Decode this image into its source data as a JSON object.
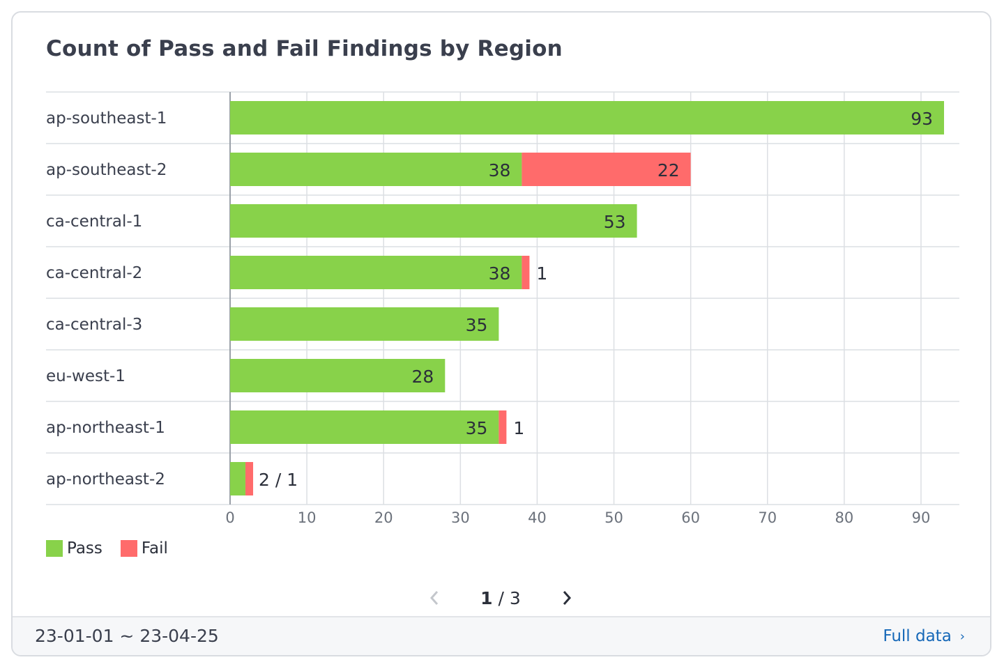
{
  "title": "Count of Pass and Fail Findings by Region",
  "chart_data": {
    "type": "bar",
    "orientation": "horizontal",
    "stacked": true,
    "categories": [
      "ap-southeast-1",
      "ap-southeast-2",
      "ca-central-1",
      "ca-central-2",
      "ca-central-3",
      "eu-west-1",
      "ap-northeast-1",
      "ap-northeast-2"
    ],
    "series": [
      {
        "name": "Pass",
        "color": "#88d24a",
        "values": [
          93,
          38,
          53,
          38,
          35,
          28,
          35,
          2
        ]
      },
      {
        "name": "Fail",
        "color": "#ff6b6b",
        "values": [
          0,
          22,
          0,
          1,
          0,
          0,
          1,
          1
        ]
      }
    ],
    "xticks": [
      "0",
      "10",
      "20",
      "30",
      "40",
      "50",
      "60",
      "70",
      "80",
      "90"
    ],
    "xlim": [
      0,
      93
    ],
    "grid": true,
    "legend_position": "bottom-left",
    "data_label_overrides": {
      "7": "2 / 1"
    }
  },
  "pagination": {
    "current": "1",
    "separator": "/",
    "total": "3"
  },
  "footer": {
    "date_range": "23-01-01 ~ 23-04-25",
    "link_label": "Full data",
    "link_chevron": "›"
  }
}
